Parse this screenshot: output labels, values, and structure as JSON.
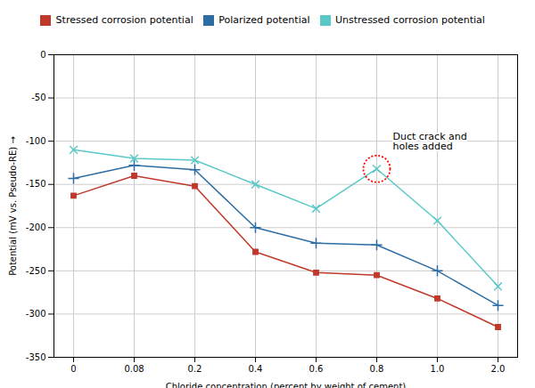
{
  "chart_data": {
    "type": "line",
    "xlabel": "Chloride concentration (percent by weight of cement)",
    "ylabel": "Potential (mV vs. Pseudo-RE)",
    "categories": [
      "0",
      "0.08",
      "0.2",
      "0.4",
      "0.6",
      "0.8",
      "1.0",
      "2.0"
    ],
    "series": [
      {
        "name": "Stressed corrosion potential",
        "color": "#c0392b",
        "marker": "square",
        "values": [
          -163,
          -140,
          -152,
          -228,
          -252,
          -255,
          -282,
          -315
        ]
      },
      {
        "name": "Polarized potential",
        "color": "#2e6da4",
        "marker": "plus",
        "values": [
          -143,
          -128,
          -133,
          -200,
          -218,
          -220,
          -250,
          -290
        ]
      },
      {
        "name": "Unstressed corrosion potential",
        "color": "#5bc8c8",
        "marker": "x",
        "values": [
          -110,
          -120,
          -122,
          -150,
          -178,
          -132,
          -192,
          -268
        ]
      }
    ],
    "ylim": [
      -350,
      0
    ],
    "yticks": [
      0,
      -50,
      -100,
      -150,
      -200,
      -250,
      -300,
      -350
    ],
    "grid": true,
    "legend": "top",
    "annotations": [
      {
        "text": "Duct crack and\nholes added",
        "x": "0.8"
      }
    ]
  }
}
